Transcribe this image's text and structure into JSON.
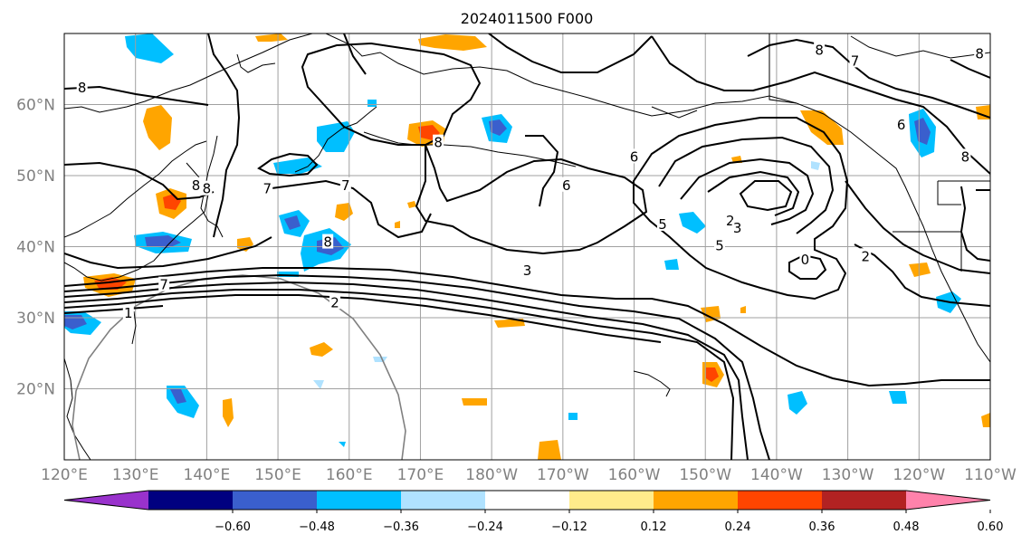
{
  "chart_data": {
    "type": "map",
    "title": "2024011500 F000",
    "projection": "PlateCarree",
    "lon_range": [
      120,
      250
    ],
    "lat_range": [
      10,
      70
    ],
    "x_ticks": [
      {
        "lon": 120,
        "label": "120°E"
      },
      {
        "lon": 130,
        "label": "130°E"
      },
      {
        "lon": 140,
        "label": "140°E"
      },
      {
        "lon": 150,
        "label": "150°E"
      },
      {
        "lon": 160,
        "label": "160°E"
      },
      {
        "lon": 170,
        "label": "170°E"
      },
      {
        "lon": 180,
        "label": "180°W"
      },
      {
        "lon": 190,
        "label": "170°W"
      },
      {
        "lon": 200,
        "label": "160°W"
      },
      {
        "lon": 210,
        "label": "150°W"
      },
      {
        "lon": 220,
        "label": "140°W"
      },
      {
        "lon": 230,
        "label": "130°W"
      },
      {
        "lon": 240,
        "label": "120°W"
      },
      {
        "lon": 250,
        "label": "110°W"
      }
    ],
    "y_ticks": [
      {
        "lat": 20,
        "label": "20°N"
      },
      {
        "lat": 30,
        "label": "30°N"
      },
      {
        "lat": 40,
        "label": "40°N"
      },
      {
        "lat": 50,
        "label": "50°N"
      },
      {
        "lat": 60,
        "label": "60°N"
      }
    ],
    "grid": true,
    "colorbar": {
      "orientation": "horizontal",
      "extend": "both",
      "boundaries": [
        -0.72,
        -0.6,
        -0.48,
        -0.36,
        -0.24,
        -0.12,
        0.12,
        0.24,
        0.36,
        0.48,
        0.6,
        0.72
      ],
      "colors": [
        "#9932cc",
        "#000080",
        "#3a5fcd",
        "#00bfff",
        "#b0e2ff",
        "#ffffff",
        "#ffec8b",
        "#ffa500",
        "#ff4500",
        "#b22222",
        "#ff82ab"
      ],
      "tick_labels": [
        "−0.60",
        "−0.48",
        "−0.36",
        "−0.24",
        "−0.12",
        "0.12",
        "0.24",
        "0.36",
        "0.48",
        "0.60"
      ]
    },
    "contour_labels": [
      {
        "lon": 122.5,
        "lat": 62.2,
        "text": "8"
      },
      {
        "lon": 138.5,
        "lat": 48.5,
        "text": "8"
      },
      {
        "lon": 134,
        "lat": 34.5,
        "text": "7"
      },
      {
        "lon": 159.5,
        "lat": 48.5,
        "text": "7"
      },
      {
        "lon": 148.5,
        "lat": 48.0,
        "text": "7"
      },
      {
        "lon": 157,
        "lat": 40.5,
        "text": "8"
      },
      {
        "lon": 172.5,
        "lat": 54.5,
        "text": "8"
      },
      {
        "lon": 190.5,
        "lat": 48.5,
        "text": "6"
      },
      {
        "lon": 140,
        "lat": 48.0,
        "text": "8"
      },
      {
        "lon": 185,
        "lat": 36.5,
        "text": "3"
      },
      {
        "lon": 158,
        "lat": 32.0,
        "text": "2"
      },
      {
        "lon": 129,
        "lat": 30.5,
        "text": "1"
      },
      {
        "lon": 204,
        "lat": 43.0,
        "text": "5"
      },
      {
        "lon": 212,
        "lat": 40.0,
        "text": "5"
      },
      {
        "lon": 213.5,
        "lat": 43.5,
        "text": "2"
      },
      {
        "lon": 214.5,
        "lat": 42.5,
        "text": "3"
      },
      {
        "lon": 224,
        "lat": 38.0,
        "text": "0"
      },
      {
        "lon": 232.5,
        "lat": 38.5,
        "text": "2"
      },
      {
        "lon": 237.5,
        "lat": 57.0,
        "text": "6"
      },
      {
        "lon": 231,
        "lat": 66.0,
        "text": "7"
      },
      {
        "lon": 226,
        "lat": 67.5,
        "text": "8"
      },
      {
        "lon": 246.5,
        "lat": 52.5,
        "text": "8"
      },
      {
        "lon": 248.5,
        "lat": 67.0,
        "text": "8"
      },
      {
        "lon": 200,
        "lat": 52.5,
        "text": "6"
      }
    ]
  }
}
